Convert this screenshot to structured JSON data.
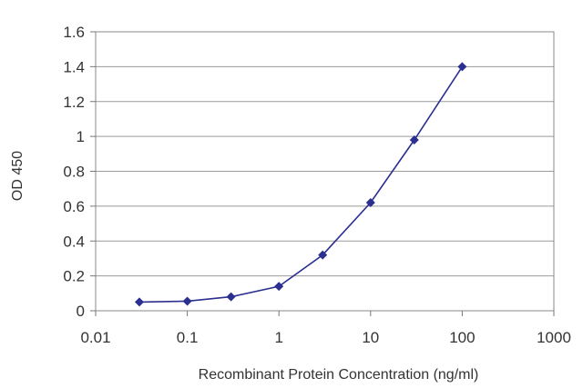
{
  "chart_data": {
    "type": "line",
    "title": "",
    "xlabel": "Recombinant Protein Concentration (ng/ml)",
    "ylabel": "OD 450",
    "x_scale": "log",
    "xlim": [
      0.01,
      1000
    ],
    "ylim": [
      0,
      1.6
    ],
    "x_ticks": [
      "0.01",
      "0.1",
      "1",
      "10",
      "100",
      "1000"
    ],
    "y_ticks": [
      "0",
      "0.2",
      "0.4",
      "0.6",
      "0.8",
      "1",
      "1.2",
      "1.4",
      "1.6"
    ],
    "grid": "horizontal",
    "legend": "none",
    "series": [
      {
        "color": "#2b2f8f",
        "x": [
          0.03,
          0.1,
          0.3,
          1,
          3,
          10,
          30,
          100
        ],
        "y": [
          0.05,
          0.055,
          0.08,
          0.14,
          0.32,
          0.62,
          0.98,
          1.4
        ]
      }
    ]
  }
}
